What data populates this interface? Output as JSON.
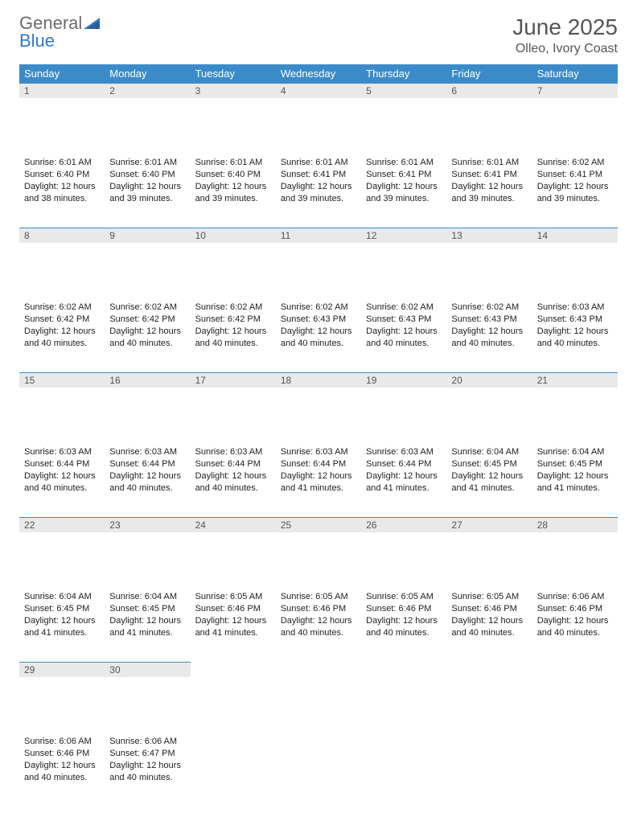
{
  "logo": {
    "word1": "General",
    "word2": "Blue",
    "gray_color": "#6b6b6b",
    "blue_color": "#3478bd"
  },
  "title": {
    "month": "June 2025",
    "location": "Olleo, Ivory Coast"
  },
  "style": {
    "header_bg": "#3b8bc9",
    "header_text": "#ffffff",
    "daynum_bg": "#e9e9e9",
    "daynum_border": "#3b8bc9",
    "text_color": "#222222",
    "page_bg": "#ffffff",
    "title_color": "#555555"
  },
  "weekdays": [
    "Sunday",
    "Monday",
    "Tuesday",
    "Wednesday",
    "Thursday",
    "Friday",
    "Saturday"
  ],
  "weeks": [
    [
      {
        "day": "1",
        "sunrise": "Sunrise: 6:01 AM",
        "sunset": "Sunset: 6:40 PM",
        "daylight": "Daylight: 12 hours and 38 minutes."
      },
      {
        "day": "2",
        "sunrise": "Sunrise: 6:01 AM",
        "sunset": "Sunset: 6:40 PM",
        "daylight": "Daylight: 12 hours and 39 minutes."
      },
      {
        "day": "3",
        "sunrise": "Sunrise: 6:01 AM",
        "sunset": "Sunset: 6:40 PM",
        "daylight": "Daylight: 12 hours and 39 minutes."
      },
      {
        "day": "4",
        "sunrise": "Sunrise: 6:01 AM",
        "sunset": "Sunset: 6:41 PM",
        "daylight": "Daylight: 12 hours and 39 minutes."
      },
      {
        "day": "5",
        "sunrise": "Sunrise: 6:01 AM",
        "sunset": "Sunset: 6:41 PM",
        "daylight": "Daylight: 12 hours and 39 minutes."
      },
      {
        "day": "6",
        "sunrise": "Sunrise: 6:01 AM",
        "sunset": "Sunset: 6:41 PM",
        "daylight": "Daylight: 12 hours and 39 minutes."
      },
      {
        "day": "7",
        "sunrise": "Sunrise: 6:02 AM",
        "sunset": "Sunset: 6:41 PM",
        "daylight": "Daylight: 12 hours and 39 minutes."
      }
    ],
    [
      {
        "day": "8",
        "sunrise": "Sunrise: 6:02 AM",
        "sunset": "Sunset: 6:42 PM",
        "daylight": "Daylight: 12 hours and 40 minutes."
      },
      {
        "day": "9",
        "sunrise": "Sunrise: 6:02 AM",
        "sunset": "Sunset: 6:42 PM",
        "daylight": "Daylight: 12 hours and 40 minutes."
      },
      {
        "day": "10",
        "sunrise": "Sunrise: 6:02 AM",
        "sunset": "Sunset: 6:42 PM",
        "daylight": "Daylight: 12 hours and 40 minutes."
      },
      {
        "day": "11",
        "sunrise": "Sunrise: 6:02 AM",
        "sunset": "Sunset: 6:43 PM",
        "daylight": "Daylight: 12 hours and 40 minutes."
      },
      {
        "day": "12",
        "sunrise": "Sunrise: 6:02 AM",
        "sunset": "Sunset: 6:43 PM",
        "daylight": "Daylight: 12 hours and 40 minutes."
      },
      {
        "day": "13",
        "sunrise": "Sunrise: 6:02 AM",
        "sunset": "Sunset: 6:43 PM",
        "daylight": "Daylight: 12 hours and 40 minutes."
      },
      {
        "day": "14",
        "sunrise": "Sunrise: 6:03 AM",
        "sunset": "Sunset: 6:43 PM",
        "daylight": "Daylight: 12 hours and 40 minutes."
      }
    ],
    [
      {
        "day": "15",
        "sunrise": "Sunrise: 6:03 AM",
        "sunset": "Sunset: 6:44 PM",
        "daylight": "Daylight: 12 hours and 40 minutes."
      },
      {
        "day": "16",
        "sunrise": "Sunrise: 6:03 AM",
        "sunset": "Sunset: 6:44 PM",
        "daylight": "Daylight: 12 hours and 40 minutes."
      },
      {
        "day": "17",
        "sunrise": "Sunrise: 6:03 AM",
        "sunset": "Sunset: 6:44 PM",
        "daylight": "Daylight: 12 hours and 40 minutes."
      },
      {
        "day": "18",
        "sunrise": "Sunrise: 6:03 AM",
        "sunset": "Sunset: 6:44 PM",
        "daylight": "Daylight: 12 hours and 41 minutes."
      },
      {
        "day": "19",
        "sunrise": "Sunrise: 6:03 AM",
        "sunset": "Sunset: 6:44 PM",
        "daylight": "Daylight: 12 hours and 41 minutes."
      },
      {
        "day": "20",
        "sunrise": "Sunrise: 6:04 AM",
        "sunset": "Sunset: 6:45 PM",
        "daylight": "Daylight: 12 hours and 41 minutes."
      },
      {
        "day": "21",
        "sunrise": "Sunrise: 6:04 AM",
        "sunset": "Sunset: 6:45 PM",
        "daylight": "Daylight: 12 hours and 41 minutes."
      }
    ],
    [
      {
        "day": "22",
        "sunrise": "Sunrise: 6:04 AM",
        "sunset": "Sunset: 6:45 PM",
        "daylight": "Daylight: 12 hours and 41 minutes."
      },
      {
        "day": "23",
        "sunrise": "Sunrise: 6:04 AM",
        "sunset": "Sunset: 6:45 PM",
        "daylight": "Daylight: 12 hours and 41 minutes."
      },
      {
        "day": "24",
        "sunrise": "Sunrise: 6:05 AM",
        "sunset": "Sunset: 6:46 PM",
        "daylight": "Daylight: 12 hours and 41 minutes."
      },
      {
        "day": "25",
        "sunrise": "Sunrise: 6:05 AM",
        "sunset": "Sunset: 6:46 PM",
        "daylight": "Daylight: 12 hours and 40 minutes."
      },
      {
        "day": "26",
        "sunrise": "Sunrise: 6:05 AM",
        "sunset": "Sunset: 6:46 PM",
        "daylight": "Daylight: 12 hours and 40 minutes."
      },
      {
        "day": "27",
        "sunrise": "Sunrise: 6:05 AM",
        "sunset": "Sunset: 6:46 PM",
        "daylight": "Daylight: 12 hours and 40 minutes."
      },
      {
        "day": "28",
        "sunrise": "Sunrise: 6:06 AM",
        "sunset": "Sunset: 6:46 PM",
        "daylight": "Daylight: 12 hours and 40 minutes."
      }
    ],
    [
      {
        "day": "29",
        "sunrise": "Sunrise: 6:06 AM",
        "sunset": "Sunset: 6:46 PM",
        "daylight": "Daylight: 12 hours and 40 minutes."
      },
      {
        "day": "30",
        "sunrise": "Sunrise: 6:06 AM",
        "sunset": "Sunset: 6:47 PM",
        "daylight": "Daylight: 12 hours and 40 minutes."
      },
      null,
      null,
      null,
      null,
      null
    ]
  ]
}
